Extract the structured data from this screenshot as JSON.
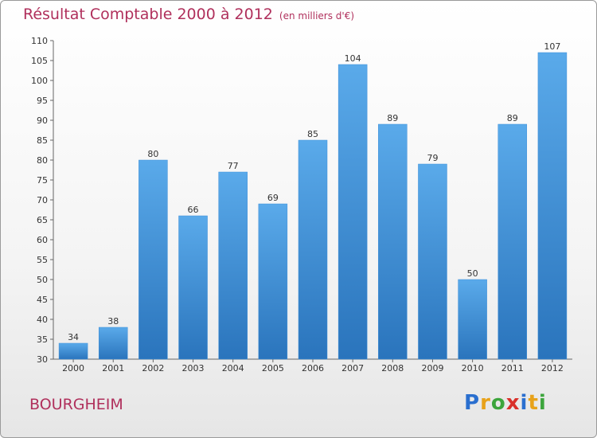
{
  "title": "Résultat Comptable 2000 à 2012",
  "unit_note": "(en milliers d'€)",
  "commune": "BOURGHEIM",
  "logo": {
    "letters": [
      "P",
      "r",
      "o",
      "x",
      "i",
      "t",
      "i"
    ],
    "colors": [
      "#2a6fcf",
      "#e8a21a",
      "#3ca53c",
      "#d9302a",
      "#2a6fcf",
      "#e8a21a",
      "#3ca53c"
    ]
  },
  "colors": {
    "bar": "#4a9ee0",
    "bar_dark": "#2c78c0",
    "title": "#b0305c"
  },
  "chart_data": {
    "type": "bar",
    "title": "Résultat Comptable 2000 à 2012",
    "ylabel": "",
    "xlabel": "",
    "categories": [
      "2000",
      "2001",
      "2002",
      "2003",
      "2004",
      "2005",
      "2006",
      "2007",
      "2008",
      "2009",
      "2010",
      "2011",
      "2012"
    ],
    "values": [
      34,
      38,
      80,
      66,
      77,
      69,
      85,
      104,
      89,
      79,
      50,
      89,
      107
    ],
    "ylim": [
      30,
      110
    ],
    "yticks": [
      30,
      35,
      40,
      45,
      50,
      55,
      60,
      65,
      70,
      75,
      80,
      85,
      90,
      95,
      100,
      105,
      110
    ],
    "grid": false,
    "data_labels": true
  }
}
